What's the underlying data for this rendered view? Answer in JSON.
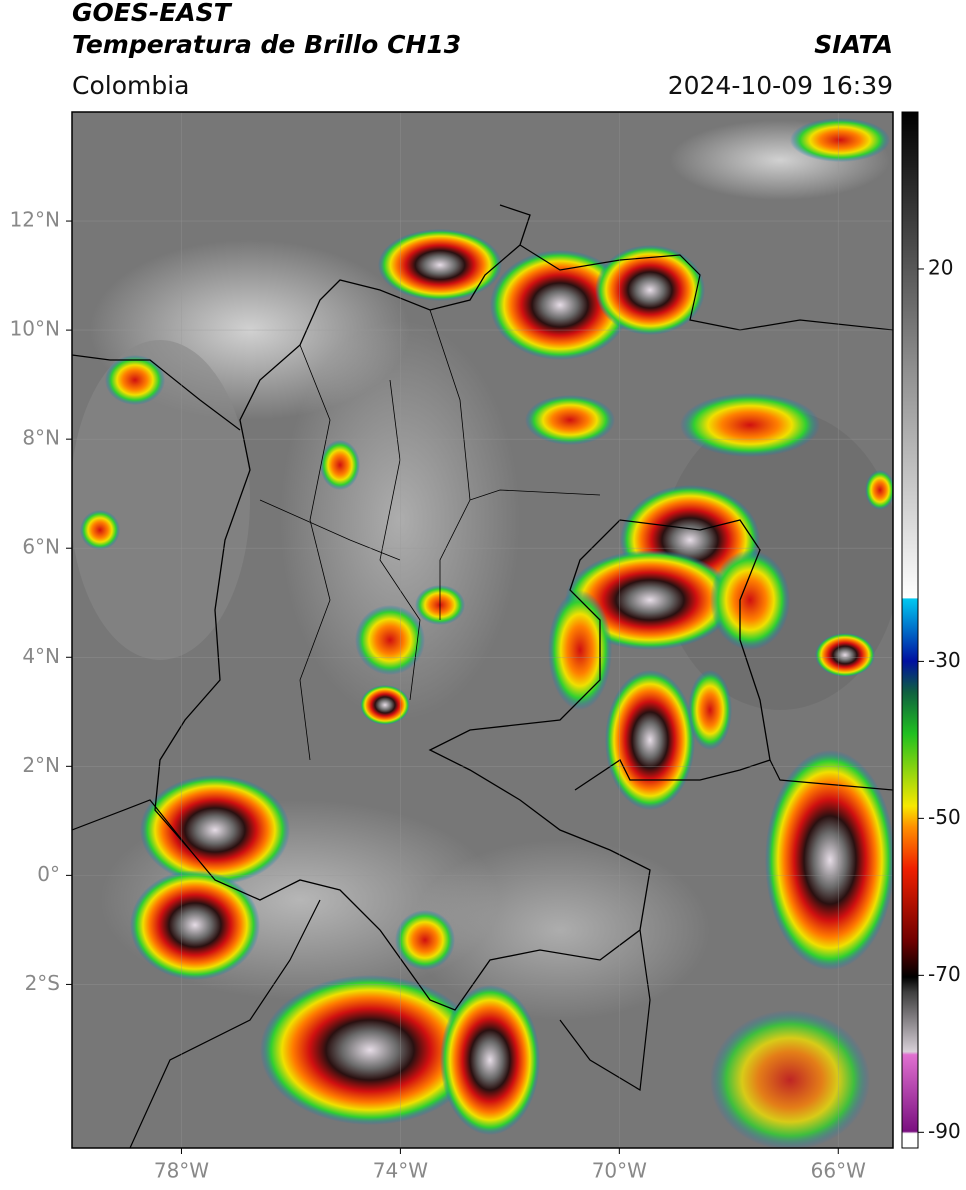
{
  "header": {
    "title_lines": [
      "GOES-EAST",
      "Temperatura de Brillo CH13"
    ],
    "region": "Colombia",
    "source": "SIATA",
    "datetime": "2024-10-09 16:39"
  },
  "map": {
    "lon_range": [
      -80,
      -65
    ],
    "lat_range": [
      -5,
      14
    ],
    "lon_ticks": [
      {
        "value": -78,
        "label": "78°W"
      },
      {
        "value": -74,
        "label": "74°W"
      },
      {
        "value": -70,
        "label": "70°W"
      },
      {
        "value": -66,
        "label": "66°W"
      }
    ],
    "lat_ticks": [
      {
        "value": 12,
        "label": "12°N"
      },
      {
        "value": 10,
        "label": "10°N"
      },
      {
        "value": 8,
        "label": "8°N"
      },
      {
        "value": 6,
        "label": "6°N"
      },
      {
        "value": 4,
        "label": "4°N"
      },
      {
        "value": 2,
        "label": "2°N"
      },
      {
        "value": 0,
        "label": "0°"
      },
      {
        "value": -2,
        "label": "2°S"
      }
    ]
  },
  "colorbar": {
    "range": [
      -92,
      40
    ],
    "ticks": [
      20,
      -30,
      -50,
      -70,
      -90
    ]
  }
}
